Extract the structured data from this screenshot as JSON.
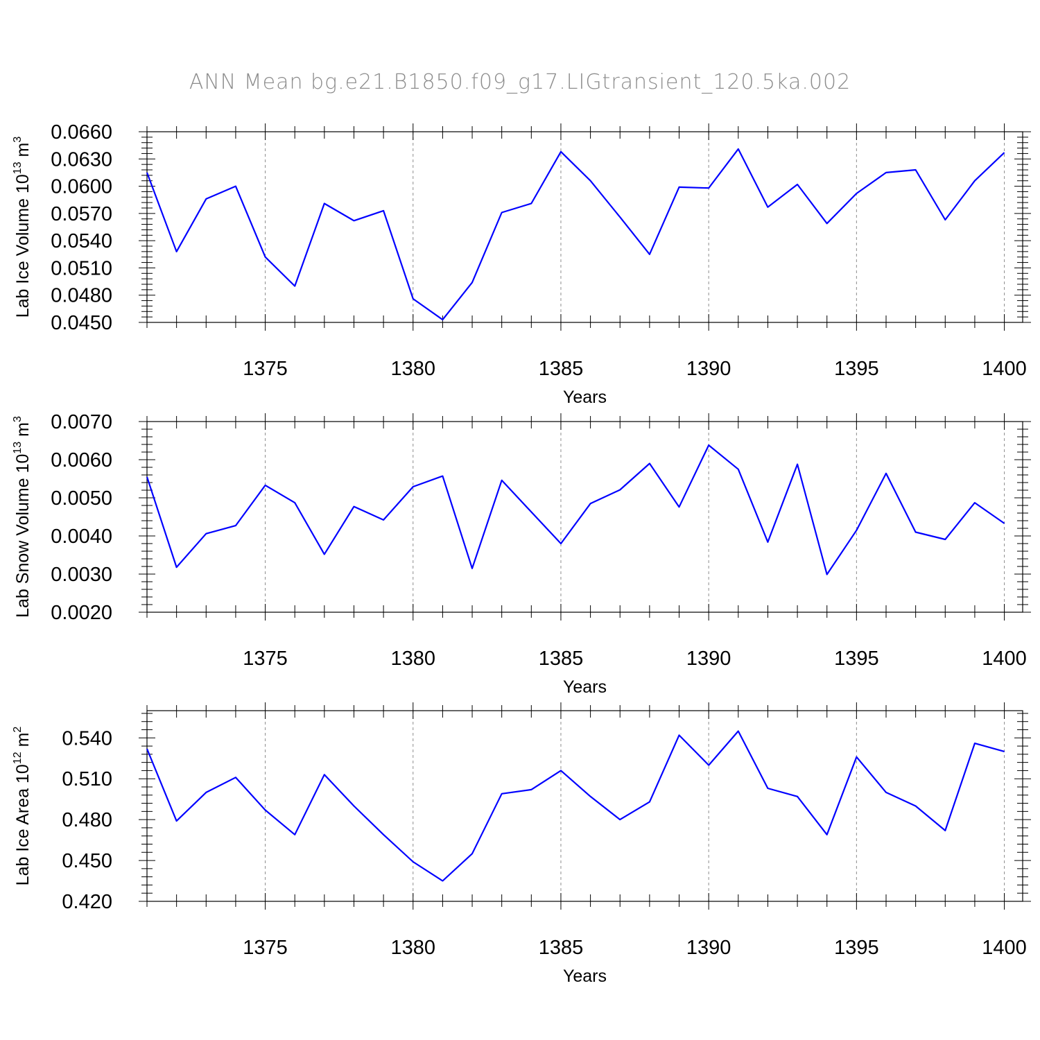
{
  "suptitle": "ANN Mean bg.e21.B1850.f09_g17.LIGtransient_120.5ka.002",
  "line_color": "#0000ff",
  "chart_data": [
    {
      "type": "line",
      "xlabel": "Years",
      "ylabel": "Lab Ice Volume 10",
      "ylabel_sup": "13",
      "ylabel_unit": " m",
      "ylabel_unit_sup": "3",
      "xlim": [
        1371,
        1400
      ],
      "ylim": [
        0.045,
        0.066
      ],
      "xticks": [
        1375,
        1380,
        1385,
        1390,
        1395,
        1400
      ],
      "yticks": [
        "0.0450",
        "0.0480",
        "0.0510",
        "0.0540",
        "0.0570",
        "0.0600",
        "0.0630",
        "0.0660"
      ],
      "grid_x": true,
      "x": [
        1371,
        1372,
        1373,
        1374,
        1375,
        1376,
        1377,
        1378,
        1379,
        1380,
        1381,
        1382,
        1383,
        1384,
        1385,
        1386,
        1387,
        1388,
        1389,
        1390,
        1391,
        1392,
        1393,
        1394,
        1395,
        1396,
        1397,
        1398,
        1399,
        1400
      ],
      "values": [
        0.0615,
        0.0528,
        0.0586,
        0.06,
        0.0522,
        0.049,
        0.0581,
        0.0562,
        0.0573,
        0.0476,
        0.0453,
        0.0494,
        0.0571,
        0.0581,
        0.0638,
        0.0606,
        0.0566,
        0.0525,
        0.0599,
        0.0598,
        0.0641,
        0.0577,
        0.0602,
        0.0559,
        0.0592,
        0.0615,
        0.0618,
        0.0563,
        0.0606,
        0.0637
      ]
    },
    {
      "type": "line",
      "xlabel": "Years",
      "ylabel": "Lab Snow Volume 10",
      "ylabel_sup": "13",
      "ylabel_unit": " m",
      "ylabel_unit_sup": "3",
      "xlim": [
        1371,
        1400
      ],
      "ylim": [
        0.002,
        0.007
      ],
      "xticks": [
        1375,
        1380,
        1385,
        1390,
        1395,
        1400
      ],
      "yticks": [
        "0.0020",
        "0.0030",
        "0.0040",
        "0.0050",
        "0.0060",
        "0.0070"
      ],
      "grid_x": true,
      "x": [
        1371,
        1372,
        1373,
        1374,
        1375,
        1376,
        1377,
        1378,
        1379,
        1380,
        1381,
        1382,
        1383,
        1384,
        1385,
        1386,
        1387,
        1388,
        1389,
        1390,
        1391,
        1392,
        1393,
        1394,
        1395,
        1396,
        1397,
        1398,
        1399,
        1400
      ],
      "values": [
        0.00555,
        0.00318,
        0.00406,
        0.00427,
        0.00533,
        0.00487,
        0.00352,
        0.00477,
        0.00442,
        0.00529,
        0.00557,
        0.00315,
        0.00546,
        0.00463,
        0.0038,
        0.00485,
        0.00521,
        0.0059,
        0.00476,
        0.00638,
        0.00575,
        0.00384,
        0.00588,
        0.00299,
        0.00415,
        0.00564,
        0.0041,
        0.00391,
        0.00487,
        0.00433
      ]
    },
    {
      "type": "line",
      "xlabel": "Years",
      "ylabel": "Lab Ice Area 10",
      "ylabel_sup": "12",
      "ylabel_unit": " m",
      "ylabel_unit_sup": "2",
      "xlim": [
        1371,
        1400
      ],
      "ylim": [
        0.42,
        0.56
      ],
      "xticks": [
        1375,
        1380,
        1385,
        1390,
        1395,
        1400
      ],
      "yticks": [
        "0.420",
        "0.450",
        "0.480",
        "0.510",
        "0.540"
      ],
      "grid_x": true,
      "x": [
        1371,
        1372,
        1373,
        1374,
        1375,
        1376,
        1377,
        1378,
        1379,
        1380,
        1381,
        1382,
        1383,
        1384,
        1385,
        1386,
        1387,
        1388,
        1389,
        1390,
        1391,
        1392,
        1393,
        1394,
        1395,
        1396,
        1397,
        1398,
        1399,
        1400
      ],
      "values": [
        0.532,
        0.479,
        0.5,
        0.511,
        0.487,
        0.469,
        0.513,
        0.49,
        0.469,
        0.449,
        0.435,
        0.455,
        0.499,
        0.502,
        0.516,
        0.497,
        0.48,
        0.493,
        0.542,
        0.52,
        0.545,
        0.503,
        0.497,
        0.469,
        0.526,
        0.5,
        0.49,
        0.472,
        0.536,
        0.53
      ]
    }
  ]
}
